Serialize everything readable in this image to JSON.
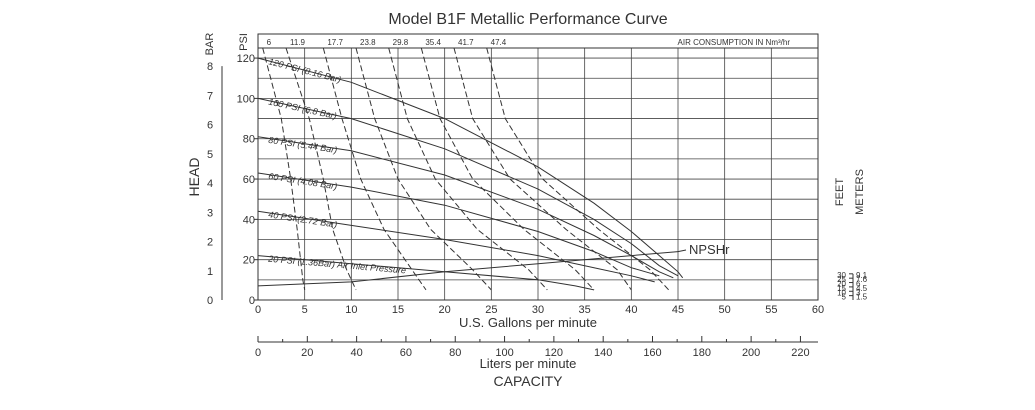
{
  "chart_data": {
    "type": "line",
    "title": "Model B1F Metallic Performance Curve",
    "x": {
      "label": "U.S. Gallons per minute",
      "range": [
        0,
        60
      ],
      "ticks": [
        0,
        5,
        10,
        15,
        20,
        25,
        30,
        35,
        40,
        45,
        50,
        55,
        60
      ]
    },
    "x2": {
      "label": "Liters per minute",
      "ticks": [
        0,
        20,
        40,
        60,
        80,
        100,
        120,
        140,
        160,
        180,
        200,
        220
      ]
    },
    "capacity_label": "CAPACITY",
    "head_label": "HEAD",
    "y_psi": {
      "unit": "PSI",
      "range": [
        0,
        125
      ],
      "ticks": [
        "0",
        "20",
        "40",
        "60",
        "80",
        "100",
        "120"
      ]
    },
    "y_bar": {
      "unit": "BAR",
      "ticks": [
        "0",
        "1",
        "2",
        "3",
        "4",
        "5",
        "6",
        "7",
        "8"
      ]
    },
    "right_axis": {
      "feet_label": "FEET",
      "meters_label": "METERS",
      "rows": [
        {
          "feet": "30",
          "meters": "9.1"
        },
        {
          "feet": "25",
          "meters": "7.6"
        },
        {
          "feet": "20",
          "meters": "6"
        },
        {
          "feet": "15",
          "meters": "4.5"
        },
        {
          "feet": "10",
          "meters": "3"
        },
        {
          "feet": "5",
          "meters": "1.5"
        }
      ]
    },
    "air_consumption": {
      "label": "AIR CONSUMPTION IN Nm³/hr",
      "values": [
        "6",
        "11.9",
        "17.7",
        "23.8",
        "29.8",
        "35.4",
        "41.7",
        "47.4"
      ]
    },
    "series": [
      {
        "name": "120 PSI (8.16 Bar)",
        "points": [
          [
            0,
            120
          ],
          [
            10,
            108
          ],
          [
            20,
            90
          ],
          [
            30,
            66
          ],
          [
            36,
            48
          ],
          [
            40,
            34
          ],
          [
            43,
            22
          ],
          [
            45,
            14
          ],
          [
            45.5,
            11
          ]
        ]
      },
      {
        "name": "100 PSI (6.8 Bar)",
        "points": [
          [
            0,
            100
          ],
          [
            10,
            90
          ],
          [
            20,
            75
          ],
          [
            30,
            55
          ],
          [
            36,
            40
          ],
          [
            40,
            28
          ],
          [
            43,
            17
          ],
          [
            45,
            12
          ]
        ]
      },
      {
        "name": "80 PSI (5.44 Bar)",
        "points": [
          [
            0,
            81
          ],
          [
            10,
            74
          ],
          [
            20,
            62
          ],
          [
            30,
            45
          ],
          [
            36,
            32
          ],
          [
            40,
            22
          ],
          [
            43,
            14
          ],
          [
            44.5,
            11
          ]
        ]
      },
      {
        "name": "60 PSI (4.08 Bar)",
        "points": [
          [
            0,
            63
          ],
          [
            10,
            56
          ],
          [
            20,
            47
          ],
          [
            30,
            34
          ],
          [
            36,
            24
          ],
          [
            40,
            16
          ],
          [
            43,
            12
          ]
        ]
      },
      {
        "name": "40 PSI (2.72 Bar)",
        "points": [
          [
            0,
            44
          ],
          [
            10,
            37
          ],
          [
            20,
            30
          ],
          [
            30,
            22
          ],
          [
            36,
            16
          ],
          [
            40,
            12
          ],
          [
            42.5,
            9
          ]
        ]
      },
      {
        "name": "20 PSI (1.36Bar) Air Inlet Pressure",
        "points": [
          [
            0,
            22
          ],
          [
            10,
            18
          ],
          [
            20,
            14
          ],
          [
            30,
            10
          ],
          [
            34,
            7
          ],
          [
            36,
            5
          ]
        ]
      }
    ],
    "air_curves": [
      {
        "value": "6",
        "points": [
          [
            0.5,
            125
          ],
          [
            2.5,
            90
          ],
          [
            3.5,
            60
          ],
          [
            4.2,
            35
          ],
          [
            4.8,
            10
          ],
          [
            5,
            5
          ]
        ]
      },
      {
        "value": "11.9",
        "points": [
          [
            3,
            125
          ],
          [
            5.5,
            90
          ],
          [
            7,
            60
          ],
          [
            8,
            35
          ],
          [
            9.5,
            15
          ],
          [
            10.5,
            5
          ]
        ]
      },
      {
        "value": "17.7",
        "points": [
          [
            7,
            125
          ],
          [
            9,
            90
          ],
          [
            11,
            60
          ],
          [
            13.5,
            35
          ],
          [
            16.5,
            15
          ],
          [
            18,
            5
          ]
        ]
      },
      {
        "value": "23.8",
        "points": [
          [
            10.5,
            125
          ],
          [
            12.5,
            90
          ],
          [
            15,
            60
          ],
          [
            18.5,
            35
          ],
          [
            23,
            15
          ],
          [
            25,
            5
          ]
        ]
      },
      {
        "value": "29.8",
        "points": [
          [
            14,
            125
          ],
          [
            16,
            90
          ],
          [
            19,
            60
          ],
          [
            23.5,
            35
          ],
          [
            29,
            15
          ],
          [
            31,
            5
          ]
        ]
      },
      {
        "value": "35.4",
        "points": [
          [
            17.5,
            125
          ],
          [
            19.5,
            90
          ],
          [
            23,
            60
          ],
          [
            28.5,
            35
          ],
          [
            34,
            15
          ],
          [
            36,
            5
          ]
        ]
      },
      {
        "value": "41.7",
        "points": [
          [
            21,
            125
          ],
          [
            23,
            90
          ],
          [
            27,
            60
          ],
          [
            33,
            35
          ],
          [
            38.5,
            15
          ],
          [
            40,
            5
          ]
        ]
      },
      {
        "value": "47.4",
        "points": [
          [
            24.5,
            125
          ],
          [
            26.5,
            90
          ],
          [
            30.5,
            60
          ],
          [
            36.5,
            35
          ],
          [
            42,
            15
          ],
          [
            44,
            5
          ]
        ]
      }
    ],
    "npshr": {
      "label": "NPSHr",
      "points": [
        [
          0,
          7
        ],
        [
          10,
          9
        ],
        [
          20,
          14
        ],
        [
          30,
          18
        ],
        [
          40,
          22
        ],
        [
          45,
          24
        ]
      ]
    }
  }
}
